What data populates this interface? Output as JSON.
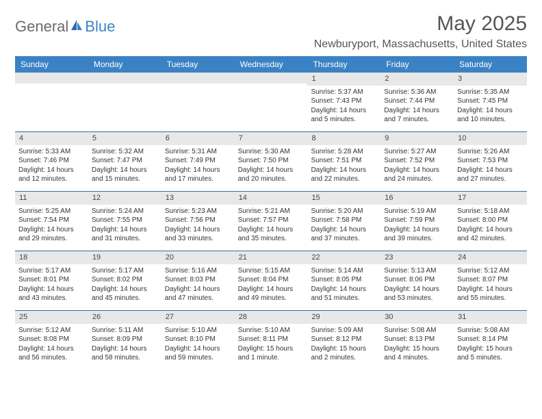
{
  "brand": {
    "part1": "General",
    "part2": "Blue"
  },
  "title": "May 2025",
  "location": "Newburyport, Massachusetts, United States",
  "colors": {
    "header_bg": "#3b82c4",
    "header_text": "#ffffff",
    "daynum_bg": "#e8e8e8",
    "row_border": "#3b6a9a",
    "text": "#333333",
    "title_text": "#555555"
  },
  "day_names": [
    "Sunday",
    "Monday",
    "Tuesday",
    "Wednesday",
    "Thursday",
    "Friday",
    "Saturday"
  ],
  "weeks": [
    [
      {
        "n": "",
        "sr": "",
        "ss": "",
        "dl": ""
      },
      {
        "n": "",
        "sr": "",
        "ss": "",
        "dl": ""
      },
      {
        "n": "",
        "sr": "",
        "ss": "",
        "dl": ""
      },
      {
        "n": "",
        "sr": "",
        "ss": "",
        "dl": ""
      },
      {
        "n": "1",
        "sr": "Sunrise: 5:37 AM",
        "ss": "Sunset: 7:43 PM",
        "dl": "Daylight: 14 hours and 5 minutes."
      },
      {
        "n": "2",
        "sr": "Sunrise: 5:36 AM",
        "ss": "Sunset: 7:44 PM",
        "dl": "Daylight: 14 hours and 7 minutes."
      },
      {
        "n": "3",
        "sr": "Sunrise: 5:35 AM",
        "ss": "Sunset: 7:45 PM",
        "dl": "Daylight: 14 hours and 10 minutes."
      }
    ],
    [
      {
        "n": "4",
        "sr": "Sunrise: 5:33 AM",
        "ss": "Sunset: 7:46 PM",
        "dl": "Daylight: 14 hours and 12 minutes."
      },
      {
        "n": "5",
        "sr": "Sunrise: 5:32 AM",
        "ss": "Sunset: 7:47 PM",
        "dl": "Daylight: 14 hours and 15 minutes."
      },
      {
        "n": "6",
        "sr": "Sunrise: 5:31 AM",
        "ss": "Sunset: 7:49 PM",
        "dl": "Daylight: 14 hours and 17 minutes."
      },
      {
        "n": "7",
        "sr": "Sunrise: 5:30 AM",
        "ss": "Sunset: 7:50 PM",
        "dl": "Daylight: 14 hours and 20 minutes."
      },
      {
        "n": "8",
        "sr": "Sunrise: 5:28 AM",
        "ss": "Sunset: 7:51 PM",
        "dl": "Daylight: 14 hours and 22 minutes."
      },
      {
        "n": "9",
        "sr": "Sunrise: 5:27 AM",
        "ss": "Sunset: 7:52 PM",
        "dl": "Daylight: 14 hours and 24 minutes."
      },
      {
        "n": "10",
        "sr": "Sunrise: 5:26 AM",
        "ss": "Sunset: 7:53 PM",
        "dl": "Daylight: 14 hours and 27 minutes."
      }
    ],
    [
      {
        "n": "11",
        "sr": "Sunrise: 5:25 AM",
        "ss": "Sunset: 7:54 PM",
        "dl": "Daylight: 14 hours and 29 minutes."
      },
      {
        "n": "12",
        "sr": "Sunrise: 5:24 AM",
        "ss": "Sunset: 7:55 PM",
        "dl": "Daylight: 14 hours and 31 minutes."
      },
      {
        "n": "13",
        "sr": "Sunrise: 5:23 AM",
        "ss": "Sunset: 7:56 PM",
        "dl": "Daylight: 14 hours and 33 minutes."
      },
      {
        "n": "14",
        "sr": "Sunrise: 5:21 AM",
        "ss": "Sunset: 7:57 PM",
        "dl": "Daylight: 14 hours and 35 minutes."
      },
      {
        "n": "15",
        "sr": "Sunrise: 5:20 AM",
        "ss": "Sunset: 7:58 PM",
        "dl": "Daylight: 14 hours and 37 minutes."
      },
      {
        "n": "16",
        "sr": "Sunrise: 5:19 AM",
        "ss": "Sunset: 7:59 PM",
        "dl": "Daylight: 14 hours and 39 minutes."
      },
      {
        "n": "17",
        "sr": "Sunrise: 5:18 AM",
        "ss": "Sunset: 8:00 PM",
        "dl": "Daylight: 14 hours and 42 minutes."
      }
    ],
    [
      {
        "n": "18",
        "sr": "Sunrise: 5:17 AM",
        "ss": "Sunset: 8:01 PM",
        "dl": "Daylight: 14 hours and 43 minutes."
      },
      {
        "n": "19",
        "sr": "Sunrise: 5:17 AM",
        "ss": "Sunset: 8:02 PM",
        "dl": "Daylight: 14 hours and 45 minutes."
      },
      {
        "n": "20",
        "sr": "Sunrise: 5:16 AM",
        "ss": "Sunset: 8:03 PM",
        "dl": "Daylight: 14 hours and 47 minutes."
      },
      {
        "n": "21",
        "sr": "Sunrise: 5:15 AM",
        "ss": "Sunset: 8:04 PM",
        "dl": "Daylight: 14 hours and 49 minutes."
      },
      {
        "n": "22",
        "sr": "Sunrise: 5:14 AM",
        "ss": "Sunset: 8:05 PM",
        "dl": "Daylight: 14 hours and 51 minutes."
      },
      {
        "n": "23",
        "sr": "Sunrise: 5:13 AM",
        "ss": "Sunset: 8:06 PM",
        "dl": "Daylight: 14 hours and 53 minutes."
      },
      {
        "n": "24",
        "sr": "Sunrise: 5:12 AM",
        "ss": "Sunset: 8:07 PM",
        "dl": "Daylight: 14 hours and 55 minutes."
      }
    ],
    [
      {
        "n": "25",
        "sr": "Sunrise: 5:12 AM",
        "ss": "Sunset: 8:08 PM",
        "dl": "Daylight: 14 hours and 56 minutes."
      },
      {
        "n": "26",
        "sr": "Sunrise: 5:11 AM",
        "ss": "Sunset: 8:09 PM",
        "dl": "Daylight: 14 hours and 58 minutes."
      },
      {
        "n": "27",
        "sr": "Sunrise: 5:10 AM",
        "ss": "Sunset: 8:10 PM",
        "dl": "Daylight: 14 hours and 59 minutes."
      },
      {
        "n": "28",
        "sr": "Sunrise: 5:10 AM",
        "ss": "Sunset: 8:11 PM",
        "dl": "Daylight: 15 hours and 1 minute."
      },
      {
        "n": "29",
        "sr": "Sunrise: 5:09 AM",
        "ss": "Sunset: 8:12 PM",
        "dl": "Daylight: 15 hours and 2 minutes."
      },
      {
        "n": "30",
        "sr": "Sunrise: 5:08 AM",
        "ss": "Sunset: 8:13 PM",
        "dl": "Daylight: 15 hours and 4 minutes."
      },
      {
        "n": "31",
        "sr": "Sunrise: 5:08 AM",
        "ss": "Sunset: 8:14 PM",
        "dl": "Daylight: 15 hours and 5 minutes."
      }
    ]
  ]
}
